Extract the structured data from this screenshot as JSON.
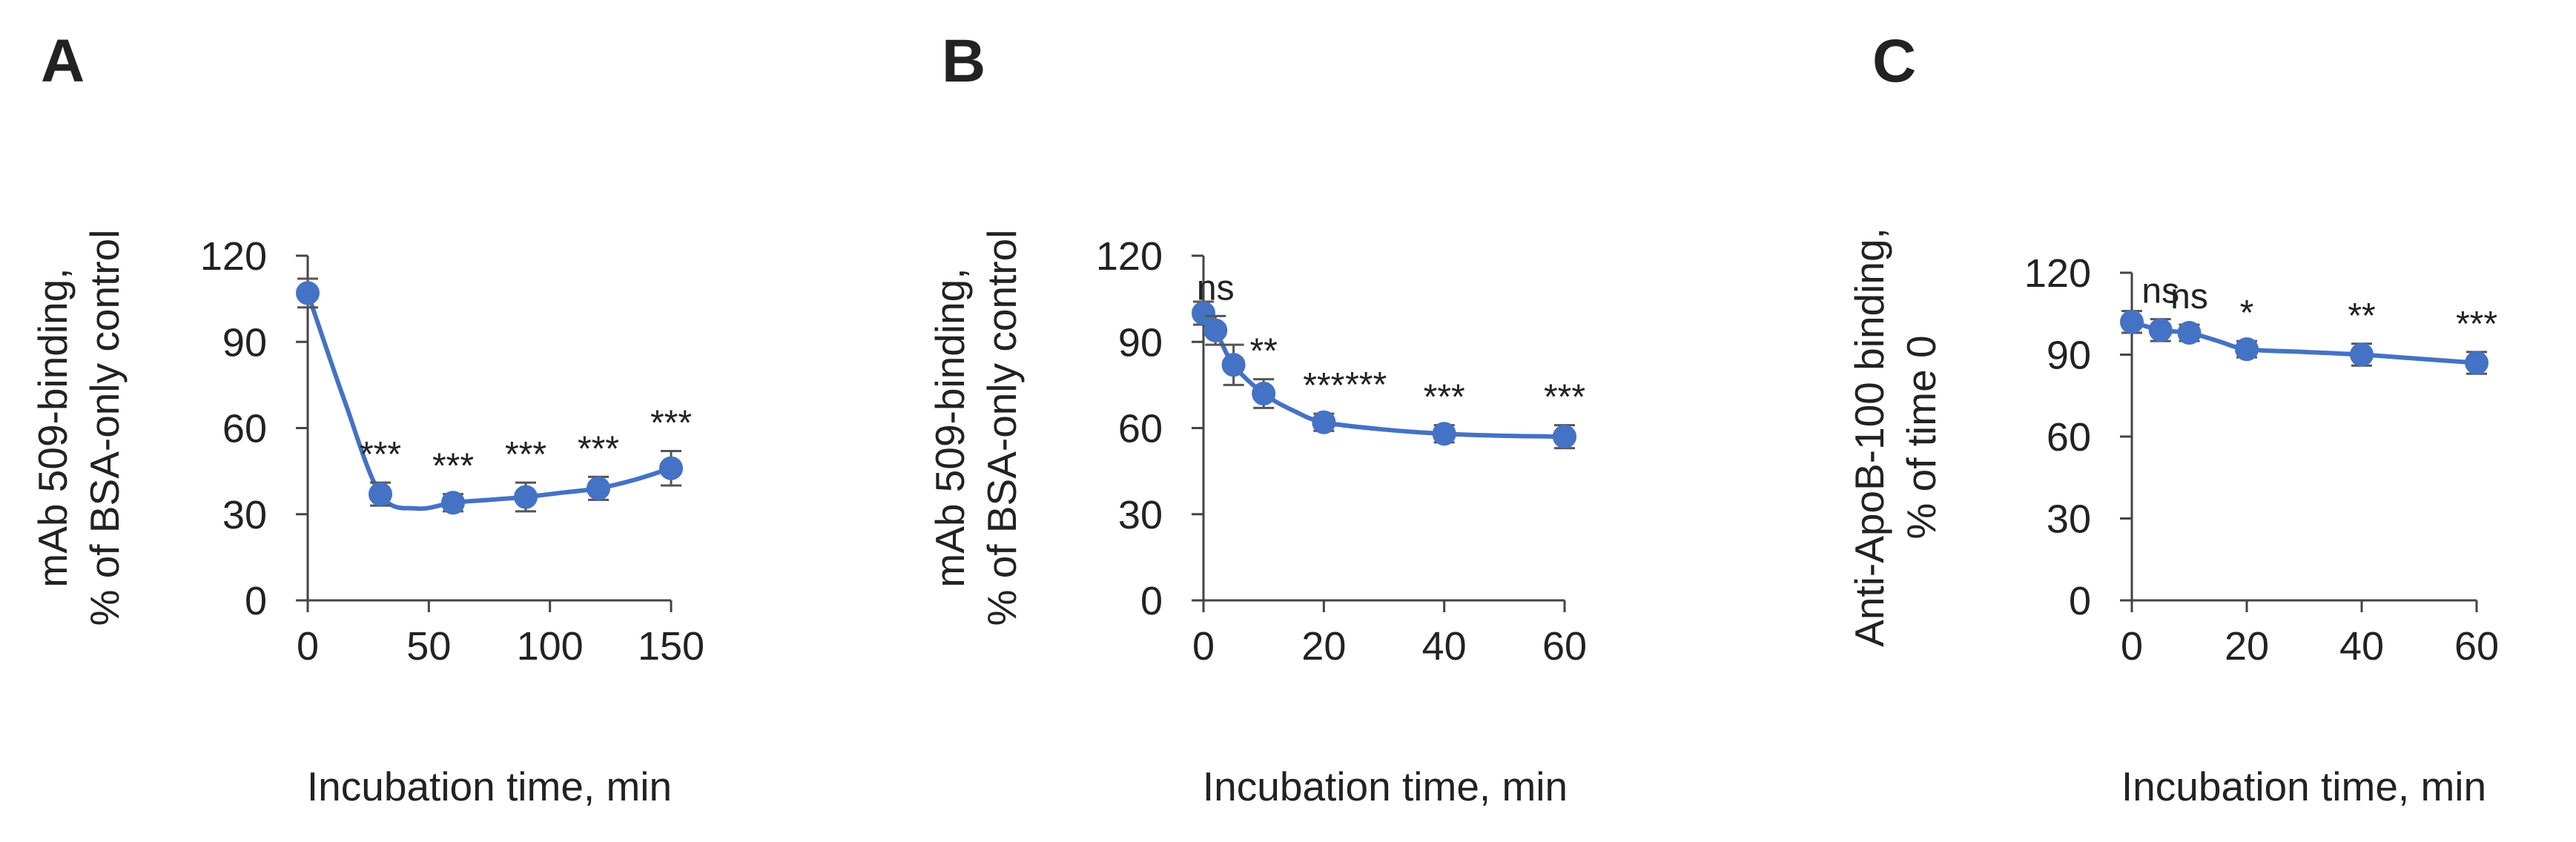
{
  "chart_data": [
    {
      "panel": "A",
      "type": "line",
      "ylabel": [
        "mAb 509-binding,",
        "% of BSA-only control"
      ],
      "xlabel": "Incubation time, min",
      "xlim": [
        0,
        150
      ],
      "ylim": [
        0,
        120
      ],
      "xticks": [
        0,
        50,
        100,
        150
      ],
      "yticks": [
        0,
        30,
        60,
        90,
        120
      ],
      "grid": false,
      "color": "#4472c4",
      "x": [
        0,
        30,
        60,
        90,
        120,
        150
      ],
      "y": [
        107,
        37,
        34,
        36,
        39,
        46
      ],
      "err": [
        5,
        4,
        3,
        5,
        4,
        6
      ],
      "annotations": [
        "",
        "***",
        "***",
        "***",
        "***",
        "***"
      ],
      "curve": [
        [
          0,
          107
        ],
        [
          15,
          70
        ],
        [
          30,
          37
        ],
        [
          45,
          32
        ],
        [
          60,
          34
        ],
        [
          75,
          35
        ],
        [
          90,
          36
        ],
        [
          105,
          37.5
        ],
        [
          120,
          39
        ],
        [
          135,
          42
        ],
        [
          150,
          46
        ]
      ]
    },
    {
      "panel": "B",
      "type": "line",
      "ylabel": [
        "mAb 509-binding,",
        "% of BSA-only control"
      ],
      "xlabel": "Incubation time, min",
      "xlim": [
        0,
        60
      ],
      "ylim": [
        0,
        120
      ],
      "xticks": [
        0,
        20,
        40,
        60
      ],
      "yticks": [
        0,
        30,
        60,
        90,
        120
      ],
      "grid": false,
      "color": "#4472c4",
      "x": [
        0,
        2,
        5,
        10,
        20,
        40,
        60
      ],
      "y": [
        100,
        94,
        82,
        72,
        62,
        58,
        57
      ],
      "err": [
        4,
        5,
        7,
        5,
        3,
        3,
        4
      ],
      "annotations": [
        "",
        "ns",
        "",
        "**",
        "***",
        "***",
        "***"
      ],
      "extra_annotations": [
        {
          "text": "***",
          "x": 27,
          "y": 71
        }
      ],
      "curve": [
        [
          0,
          100
        ],
        [
          2,
          94
        ],
        [
          5,
          82
        ],
        [
          10,
          72
        ],
        [
          15,
          66
        ],
        [
          20,
          62
        ],
        [
          30,
          59.5
        ],
        [
          40,
          58
        ],
        [
          50,
          57.3
        ],
        [
          60,
          57
        ]
      ]
    },
    {
      "panel": "C",
      "type": "line",
      "ylabel": [
        "Anti-ApoB-100 binding,",
        "% of time 0"
      ],
      "xlabel": "Incubation time, min",
      "xlim": [
        0,
        60
      ],
      "ylim": [
        0,
        120
      ],
      "xticks": [
        0,
        20,
        40,
        60
      ],
      "yticks": [
        0,
        30,
        60,
        90,
        120
      ],
      "grid": false,
      "color": "#4472c4",
      "x": [
        0,
        5,
        10,
        20,
        40,
        60
      ],
      "y": [
        102,
        99,
        98,
        92,
        90,
        87
      ],
      "err": [
        4,
        4,
        3,
        3,
        4,
        4
      ],
      "annotations": [
        "",
        "ns",
        "ns",
        "*",
        "**",
        "***"
      ],
      "curve": [
        [
          0,
          102
        ],
        [
          5,
          99
        ],
        [
          10,
          98
        ],
        [
          15,
          95
        ],
        [
          20,
          92
        ],
        [
          30,
          91
        ],
        [
          40,
          90
        ],
        [
          50,
          88.5
        ],
        [
          60,
          87
        ]
      ]
    }
  ]
}
